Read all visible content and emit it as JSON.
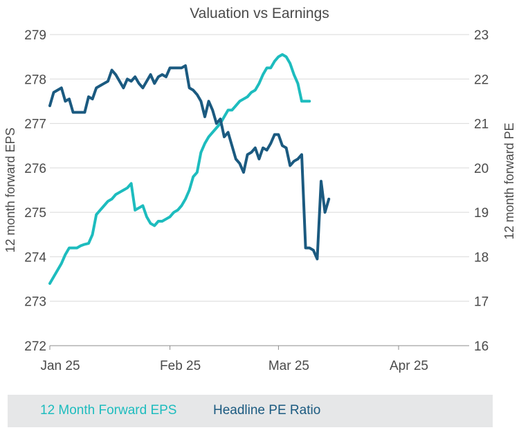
{
  "chart_data": {
    "type": "line",
    "title": "Valuation vs Earnings",
    "x_ticks": [
      {
        "label": "Jan 25",
        "x": 0
      },
      {
        "label": "Feb 25",
        "x": 31
      },
      {
        "label": "Mar 25",
        "x": 59
      },
      {
        "label": "Apr 25",
        "x": 90
      }
    ],
    "y_left": {
      "label": "12 month forward EPS",
      "min": 272,
      "max": 279,
      "ticks": [
        272,
        273,
        274,
        275,
        276,
        277,
        278,
        279
      ]
    },
    "y_right": {
      "label": "12 month forward PE",
      "min": 16,
      "max": 23,
      "ticks": [
        16,
        17,
        18,
        19,
        20,
        21,
        22,
        23
      ]
    },
    "series": [
      {
        "name": "12 Month Forward EPS",
        "axis": "left",
        "color": "#1dbcbe",
        "points": [
          [
            0,
            273.4
          ],
          [
            1,
            273.55
          ],
          [
            2,
            273.7
          ],
          [
            3,
            273.85
          ],
          [
            4,
            274.05
          ],
          [
            5,
            274.2
          ],
          [
            6,
            274.2
          ],
          [
            7,
            274.2
          ],
          [
            8,
            274.25
          ],
          [
            9,
            274.28
          ],
          [
            10,
            274.3
          ],
          [
            11,
            274.5
          ],
          [
            12,
            274.95
          ],
          [
            13,
            275.05
          ],
          [
            14,
            275.15
          ],
          [
            15,
            275.25
          ],
          [
            16,
            275.3
          ],
          [
            17,
            275.4
          ],
          [
            18,
            275.45
          ],
          [
            19,
            275.5
          ],
          [
            20,
            275.55
          ],
          [
            21,
            275.65
          ],
          [
            22,
            275.05
          ],
          [
            23,
            275.1
          ],
          [
            24,
            275.15
          ],
          [
            25,
            274.9
          ],
          [
            26,
            274.75
          ],
          [
            27,
            274.7
          ],
          [
            28,
            274.8
          ],
          [
            29,
            274.8
          ],
          [
            30,
            274.85
          ],
          [
            31,
            274.9
          ],
          [
            32,
            275.0
          ],
          [
            33,
            275.05
          ],
          [
            34,
            275.15
          ],
          [
            35,
            275.3
          ],
          [
            36,
            275.5
          ],
          [
            37,
            275.8
          ],
          [
            38,
            275.9
          ],
          [
            39,
            276.35
          ],
          [
            40,
            276.55
          ],
          [
            41,
            276.7
          ],
          [
            42,
            276.8
          ],
          [
            43,
            276.9
          ],
          [
            44,
            277.0
          ],
          [
            45,
            277.15
          ],
          [
            46,
            277.3
          ],
          [
            47,
            277.3
          ],
          [
            48,
            277.4
          ],
          [
            49,
            277.5
          ],
          [
            50,
            277.55
          ],
          [
            51,
            277.6
          ],
          [
            52,
            277.7
          ],
          [
            53,
            277.75
          ],
          [
            54,
            277.9
          ],
          [
            55,
            278.1
          ],
          [
            56,
            278.25
          ],
          [
            57,
            278.25
          ],
          [
            58,
            278.4
          ],
          [
            59,
            278.5
          ],
          [
            60,
            278.55
          ],
          [
            61,
            278.5
          ],
          [
            62,
            278.35
          ],
          [
            63,
            278.1
          ],
          [
            64,
            277.9
          ],
          [
            65,
            277.5
          ],
          [
            66,
            277.5
          ],
          [
            67,
            277.5
          ]
        ]
      },
      {
        "name": "Headline PE Ratio",
        "axis": "right",
        "color": "#1b5a80",
        "points": [
          [
            0,
            21.4
          ],
          [
            1,
            21.7
          ],
          [
            2,
            21.75
          ],
          [
            3,
            21.8
          ],
          [
            4,
            21.5
          ],
          [
            5,
            21.55
          ],
          [
            6,
            21.25
          ],
          [
            7,
            21.25
          ],
          [
            8,
            21.25
          ],
          [
            9,
            21.25
          ],
          [
            10,
            21.6
          ],
          [
            11,
            21.55
          ],
          [
            12,
            21.8
          ],
          [
            13,
            21.85
          ],
          [
            14,
            21.9
          ],
          [
            15,
            21.95
          ],
          [
            16,
            22.2
          ],
          [
            17,
            22.1
          ],
          [
            18,
            21.95
          ],
          [
            19,
            21.8
          ],
          [
            20,
            22.0
          ],
          [
            21,
            21.95
          ],
          [
            22,
            22.05
          ],
          [
            23,
            21.9
          ],
          [
            24,
            21.8
          ],
          [
            25,
            21.95
          ],
          [
            26,
            22.1
          ],
          [
            27,
            21.9
          ],
          [
            28,
            22.05
          ],
          [
            29,
            22.1
          ],
          [
            30,
            22.05
          ],
          [
            31,
            22.25
          ],
          [
            32,
            22.25
          ],
          [
            33,
            22.25
          ],
          [
            34,
            22.25
          ],
          [
            35,
            22.3
          ],
          [
            36,
            21.8
          ],
          [
            37,
            21.75
          ],
          [
            38,
            21.65
          ],
          [
            39,
            21.5
          ],
          [
            40,
            21.15
          ],
          [
            41,
            21.5
          ],
          [
            42,
            21.3
          ],
          [
            43,
            21.0
          ],
          [
            44,
            21.1
          ],
          [
            45,
            20.7
          ],
          [
            46,
            20.8
          ],
          [
            47,
            20.5
          ],
          [
            48,
            20.2
          ],
          [
            49,
            20.1
          ],
          [
            50,
            19.9
          ],
          [
            51,
            20.3
          ],
          [
            52,
            20.35
          ],
          [
            53,
            20.45
          ],
          [
            54,
            20.2
          ],
          [
            55,
            20.45
          ],
          [
            56,
            20.4
          ],
          [
            57,
            20.55
          ],
          [
            58,
            20.75
          ],
          [
            59,
            20.75
          ],
          [
            60,
            20.5
          ],
          [
            61,
            20.45
          ],
          [
            62,
            20.05
          ],
          [
            63,
            20.15
          ],
          [
            64,
            20.2
          ],
          [
            65,
            20.3
          ],
          [
            66,
            18.2
          ],
          [
            67,
            18.2
          ],
          [
            68,
            18.15
          ],
          [
            69,
            17.95
          ],
          [
            70,
            19.7
          ],
          [
            71,
            19.0
          ],
          [
            72,
            19.3
          ]
        ]
      }
    ],
    "legend_position": "bottom"
  }
}
